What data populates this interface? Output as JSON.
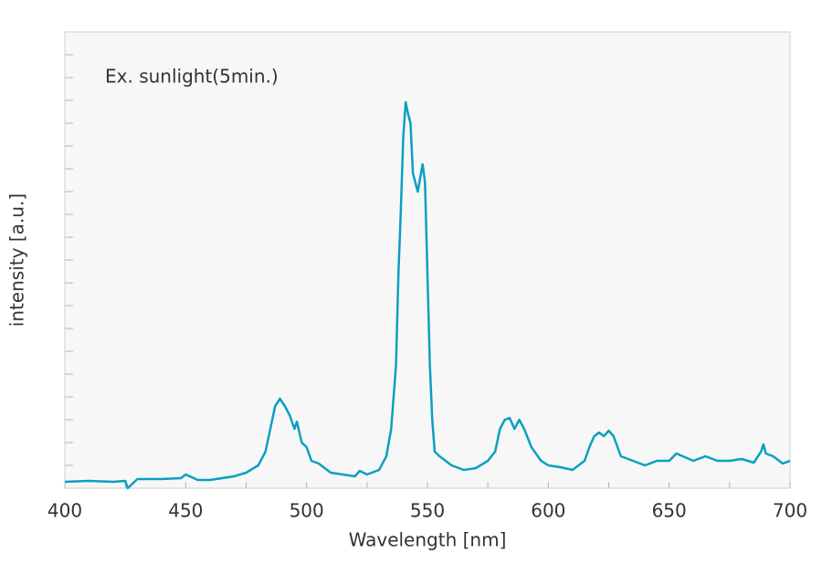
{
  "chart_data": {
    "type": "line",
    "annotation": "Ex. sunlight(5min.)",
    "x_label": "Wavelength [nm]",
    "y_label": "intensity [a.u.]",
    "xlim": [
      400,
      700
    ],
    "xticks": [
      400,
      450,
      500,
      550,
      600,
      650,
      700
    ],
    "xminorticks": [
      425,
      475,
      525,
      575,
      625,
      675
    ],
    "ylim": [
      0,
      20
    ],
    "yticks": [
      1,
      2,
      3,
      4,
      5,
      6,
      7,
      8,
      9,
      10,
      11,
      12,
      13,
      14,
      15,
      16,
      17,
      18,
      19
    ],
    "x": [
      400,
      410,
      420,
      425,
      426,
      430,
      440,
      448,
      450,
      455,
      460,
      470,
      475,
      480,
      483,
      485,
      487,
      489,
      491,
      493,
      495,
      496,
      498,
      500,
      502,
      505,
      510,
      515,
      520,
      522,
      525,
      530,
      533,
      535,
      537,
      538,
      539,
      540,
      541,
      542,
      543,
      544,
      545,
      546,
      547,
      548,
      549,
      550,
      551,
      552,
      553,
      555,
      560,
      565,
      570,
      575,
      578,
      580,
      582,
      584,
      586,
      588,
      590,
      593,
      597,
      600,
      605,
      610,
      615,
      617,
      619,
      621,
      623,
      625,
      627,
      630,
      635,
      640,
      645,
      650,
      653,
      660,
      665,
      670,
      675,
      680,
      685,
      688,
      689,
      690,
      693,
      697,
      700
    ],
    "series": [
      {
        "color": "#0aa0c0",
        "values": [
          0.28,
          0.32,
          0.28,
          0.32,
          0.0,
          0.4,
          0.4,
          0.44,
          0.6,
          0.36,
          0.36,
          0.52,
          0.68,
          1.0,
          1.6,
          2.6,
          3.6,
          3.92,
          3.6,
          3.2,
          2.6,
          2.92,
          2.0,
          1.8,
          1.2,
          1.08,
          0.68,
          0.6,
          0.52,
          0.76,
          0.6,
          0.8,
          1.4,
          2.6,
          5.4,
          9.4,
          12.2,
          15.4,
          16.92,
          16.4,
          16.0,
          13.8,
          13.4,
          13.0,
          13.6,
          14.2,
          13.4,
          9.4,
          5.4,
          3.0,
          1.6,
          1.4,
          1.0,
          0.8,
          0.88,
          1.2,
          1.6,
          2.6,
          3.0,
          3.08,
          2.6,
          3.0,
          2.6,
          1.8,
          1.2,
          1.0,
          0.92,
          0.8,
          1.2,
          1.8,
          2.28,
          2.44,
          2.28,
          2.52,
          2.28,
          1.4,
          1.2,
          1.0,
          1.2,
          1.2,
          1.52,
          1.2,
          1.4,
          1.2,
          1.2,
          1.28,
          1.12,
          1.6,
          1.92,
          1.52,
          1.4,
          1.08,
          1.2
        ]
      }
    ]
  }
}
